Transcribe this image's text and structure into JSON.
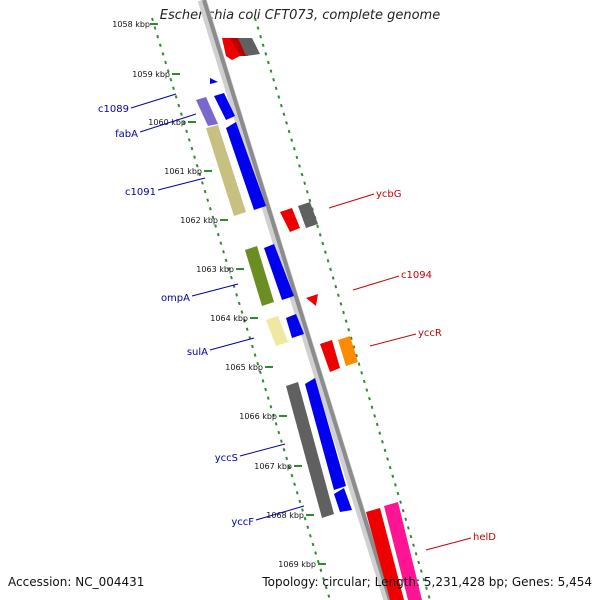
{
  "title": "Escherichia coli CFT073, complete genome",
  "accession_text": "Accession: NC_004431",
  "topology_text": "Topology: circular; Length: 5,231,428 bp; Genes: 5,454",
  "colors": {
    "backbone": "#8c8c8c",
    "tick_minor": "#2e8b2e",
    "kbp_label": "#111111",
    "left_gene_label": "#0000aa",
    "right_gene_label": "#cc0000"
  },
  "kbp_ticks": [
    "1058 kbp",
    "1059 kbp",
    "1060 kbp",
    "1061 kbp",
    "1062 kbp",
    "1063 kbp",
    "1064 kbp",
    "1065 kbp",
    "1066 kbp",
    "1067 kbp",
    "1068 kbp",
    "1069 kbp"
  ],
  "left_gene_labels": [
    "c1089",
    "fabA",
    "c1091",
    "ompA",
    "sulA",
    "yccS",
    "yccF"
  ],
  "right_gene_labels": [
    "ycbG",
    "c1094",
    "yccR",
    "helD"
  ],
  "genes": [
    {
      "name": "c1089",
      "strand": "forward",
      "color": "#7b68cc"
    },
    {
      "name": "fabA",
      "strand": "forward",
      "color": "#0000ee"
    },
    {
      "name": "c1091",
      "strand": "forward",
      "color": "#c8c080"
    },
    {
      "name": "c1091-b",
      "strand": "forward",
      "color": "#0000ee"
    },
    {
      "name": "ompA",
      "strand": "forward",
      "color": "#6b8e23"
    },
    {
      "name": "ompA-b",
      "strand": "forward",
      "color": "#0000ee"
    },
    {
      "name": "sulA",
      "strand": "forward",
      "color": "#f0e8a0"
    },
    {
      "name": "sulA-b",
      "strand": "forward",
      "color": "#0000ee"
    },
    {
      "name": "yccS",
      "strand": "forward",
      "color": "#606060"
    },
    {
      "name": "yccS-b",
      "strand": "forward",
      "color": "#0000ee"
    },
    {
      "name": "yccF",
      "strand": "forward",
      "color": "#0000ee"
    },
    {
      "name": "ycbG",
      "strand": "reverse",
      "color": "#ee0000"
    },
    {
      "name": "ycbG-b",
      "strand": "reverse",
      "color": "#606060"
    },
    {
      "name": "c1094",
      "strand": "reverse",
      "color": "#ee0000"
    },
    {
      "name": "yccR",
      "strand": "reverse",
      "color": "#ee0000"
    },
    {
      "name": "yccR-b",
      "strand": "reverse",
      "color": "#ff8c00"
    },
    {
      "name": "helD",
      "strand": "reverse",
      "color": "#ee0000"
    },
    {
      "name": "helD-b",
      "strand": "reverse",
      "color": "#ff1493"
    }
  ]
}
